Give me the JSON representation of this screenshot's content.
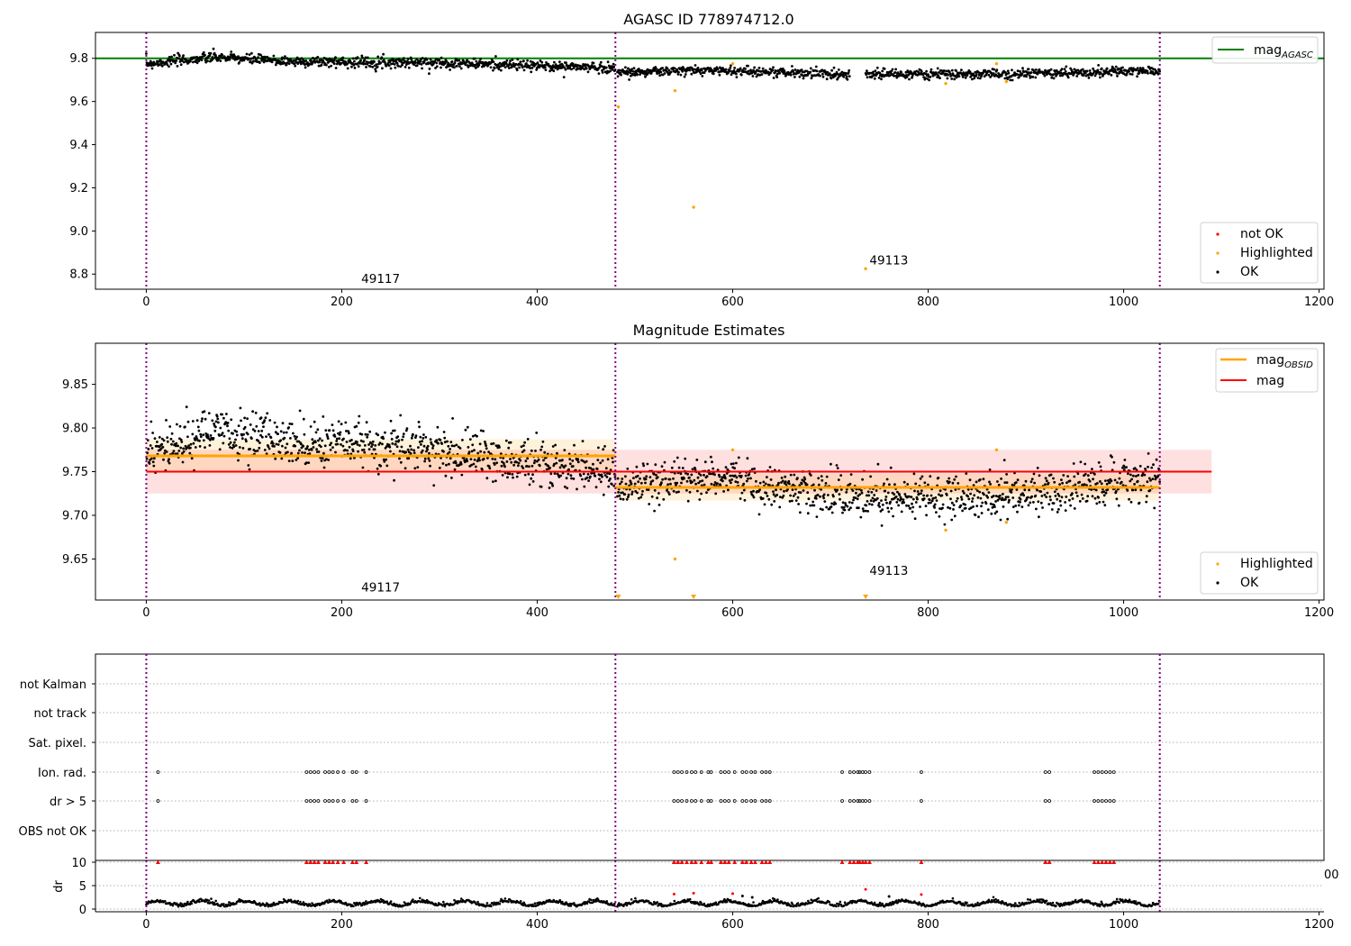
{
  "chart_data": [
    {
      "type": "scatter",
      "title": "AGASC ID 778974712.0",
      "xlim": [
        -52,
        1205
      ],
      "ylim": [
        8.73,
        9.92
      ],
      "xticks": [
        0,
        200,
        400,
        600,
        800,
        1000,
        1200
      ],
      "yticks": [
        8.8,
        9.0,
        9.2,
        9.4,
        9.6,
        9.8
      ],
      "ytick_labels": [
        "8.8",
        "9.0",
        "9.2",
        "9.4",
        "9.6",
        "9.8"
      ],
      "obsid_boundaries": [
        0,
        480,
        1037
      ],
      "mag_agasc": 9.8,
      "annotations": [
        {
          "text": "49117",
          "x": 220,
          "y": 8.76
        },
        {
          "text": "49113",
          "x": 740,
          "y": 8.845
        }
      ],
      "legend_upper": {
        "items": [
          {
            "label": "mag",
            "sub": "AGASC",
            "color": "#008000"
          }
        ],
        "position": "upper right"
      },
      "legend_lower": {
        "items": [
          {
            "label": "not OK",
            "color": "#ff0000"
          },
          {
            "label": "Highlighted",
            "color": "#ffa500"
          },
          {
            "label": "OK",
            "color": "#000000"
          }
        ],
        "position": "lower right"
      },
      "series": [
        {
          "name": "OK",
          "color": "#000000",
          "segments": [
            {
              "x_start": 0,
              "x_end": 480,
              "mean": 9.772,
              "trend": [
                [
                  0,
                  9.775
                ],
                [
                  70,
                  9.805
                ],
                [
                  150,
                  9.785
                ],
                [
                  300,
                  9.78
                ],
                [
                  400,
                  9.765
                ],
                [
                  480,
                  9.755
                ]
              ],
              "spread": 0.012
            },
            {
              "x_start": 482,
              "x_end": 1037,
              "mean": 9.735,
              "trend": [
                [
                  482,
                  9.735
                ],
                [
                  580,
                  9.745
                ],
                [
                  700,
                  9.728
                ],
                [
                  850,
                  9.725
                ],
                [
                  1037,
                  9.742
                ]
              ],
              "spread": 0.011
            }
          ],
          "gap": [
            720,
            736
          ]
        },
        {
          "name": "Highlighted",
          "color": "#ffa500",
          "points": [
            {
              "x": 483,
              "y": 9.575
            },
            {
              "x": 541,
              "y": 9.65
            },
            {
              "x": 560,
              "y": 9.11
            },
            {
              "x": 600,
              "y": 9.775
            },
            {
              "x": 736,
              "y": 8.825
            },
            {
              "x": 818,
              "y": 9.683
            },
            {
              "x": 870,
              "y": 9.775
            },
            {
              "x": 880,
              "y": 9.692
            }
          ]
        }
      ]
    },
    {
      "type": "scatter",
      "title": "Magnitude Estimates",
      "xlim": [
        -52,
        1205
      ],
      "ylim": [
        9.603,
        9.897
      ],
      "xticks": [
        0,
        200,
        400,
        600,
        800,
        1000,
        1200
      ],
      "yticks": [
        9.65,
        9.7,
        9.75,
        9.8,
        9.85
      ],
      "ytick_labels": [
        "9.65",
        "9.70",
        "9.75",
        "9.80",
        "9.85"
      ],
      "obsid_boundaries": [
        0,
        480,
        1037
      ],
      "mag": {
        "value": 9.75,
        "band": [
          9.725,
          9.775
        ],
        "x_range": [
          0,
          1090
        ],
        "color": "#ff0000"
      },
      "mag_obsid": [
        {
          "x_range": [
            0,
            480
          ],
          "value": 9.768,
          "band": [
            9.75,
            9.787
          ]
        },
        {
          "x_range": [
            480,
            1037
          ],
          "value": 9.732,
          "band": [
            9.717,
            9.747
          ]
        }
      ],
      "annotations": [
        {
          "text": "49117",
          "x": 220,
          "y": 9.613
        },
        {
          "text": "49113",
          "x": 740,
          "y": 9.632
        }
      ],
      "legend_upper": {
        "items": [
          {
            "label": "mag",
            "sub": "OBSID",
            "color": "#ffa500"
          },
          {
            "label": "mag",
            "sub": "",
            "color": "#ff0000"
          }
        ],
        "position": "upper right"
      },
      "legend_lower": {
        "items": [
          {
            "label": "Highlighted",
            "color": "#ffa500"
          },
          {
            "label": "OK",
            "color": "#000000"
          }
        ],
        "position": "lower right"
      },
      "clipped_markers_x": [
        483,
        560,
        736
      ],
      "series": [
        {
          "name": "OK",
          "color": "#000000",
          "segments": [
            {
              "x_start": 0,
              "x_end": 480,
              "trend": [
                [
                  0,
                  9.77
                ],
                [
                  70,
                  9.795
                ],
                [
                  150,
                  9.785
                ],
                [
                  300,
                  9.775
                ],
                [
                  400,
                  9.76
                ],
                [
                  480,
                  9.75
                ]
              ],
              "spread": 0.013
            },
            {
              "x_start": 482,
              "x_end": 1037,
              "trend": [
                [
                  482,
                  9.73
                ],
                [
                  580,
                  9.745
                ],
                [
                  700,
                  9.725
                ],
                [
                  850,
                  9.72
                ],
                [
                  1037,
                  9.742
                ]
              ],
              "spread": 0.012
            }
          ]
        },
        {
          "name": "Highlighted",
          "color": "#ffa500",
          "points": [
            {
              "x": 541,
              "y": 9.65
            },
            {
              "x": 600,
              "y": 9.775
            },
            {
              "x": 818,
              "y": 9.683
            },
            {
              "x": 870,
              "y": 9.775
            },
            {
              "x": 880,
              "y": 9.692
            }
          ]
        }
      ]
    },
    {
      "type": "scatter",
      "title": "",
      "xlim": [
        -52,
        1205
      ],
      "categories": [
        "not Kalman",
        "not track",
        "Sat. pixel.",
        "Ion. rad.",
        "dr > 5",
        "OBS not OK"
      ],
      "flags": {
        "Ion. rad.": [
          12,
          164,
          168,
          172,
          176,
          183,
          187,
          191,
          196,
          202,
          211,
          215,
          225,
          540,
          544,
          548,
          553,
          558,
          562,
          568,
          575,
          578,
          588,
          592,
          596,
          602,
          610,
          614,
          619,
          623,
          630,
          634,
          638,
          712,
          720,
          724,
          728,
          730,
          733,
          736,
          740,
          793,
          920,
          924,
          970,
          974,
          978,
          982,
          986,
          990
        ],
        "dr > 5": [
          12,
          164,
          168,
          172,
          176,
          183,
          187,
          191,
          196,
          202,
          211,
          215,
          225,
          540,
          544,
          548,
          553,
          558,
          562,
          568,
          575,
          578,
          588,
          592,
          596,
          602,
          610,
          614,
          619,
          623,
          630,
          634,
          638,
          712,
          720,
          724,
          728,
          730,
          733,
          736,
          740,
          793,
          920,
          924,
          970,
          974,
          978,
          982,
          986,
          990
        ]
      },
      "obsid_boundaries": [
        0,
        480,
        1037
      ]
    },
    {
      "type": "scatter",
      "title": "",
      "xlim": [
        -52,
        1205
      ],
      "xticks": [
        0,
        200,
        400,
        600,
        800,
        1000,
        1200
      ],
      "ylabel": "dr",
      "yticks": [
        0,
        5,
        10
      ],
      "ytick_labels": [
        "0",
        "5",
        "10"
      ],
      "ylim": [
        -0.5,
        10.5
      ],
      "clipped_label": "00",
      "clipped_x": [
        12,
        164,
        168,
        172,
        176,
        183,
        187,
        191,
        196,
        202,
        211,
        215,
        225,
        540,
        544,
        548,
        553,
        558,
        562,
        568,
        575,
        578,
        588,
        592,
        596,
        602,
        610,
        614,
        619,
        623,
        630,
        634,
        638,
        712,
        720,
        724,
        728,
        730,
        733,
        736,
        740,
        793,
        920,
        924,
        970,
        974,
        978,
        982,
        986,
        990
      ],
      "extra_points": [
        {
          "x": 540,
          "y": 3.2,
          "color": "#ff0000"
        },
        {
          "x": 560,
          "y": 3.4,
          "color": "#ff0000"
        },
        {
          "x": 600,
          "y": 3.3,
          "color": "#ff0000"
        },
        {
          "x": 736,
          "y": 4.2,
          "color": "#ff0000"
        },
        {
          "x": 793,
          "y": 3.1,
          "color": "#ff0000"
        },
        {
          "x": 610,
          "y": 2.8,
          "color": "#000000"
        },
        {
          "x": 620,
          "y": 2.5,
          "color": "#000000"
        },
        {
          "x": 760,
          "y": 2.7,
          "color": "#000000"
        }
      ],
      "baseline": {
        "mean": 1.0,
        "amplitude": 0.6,
        "period": 45
      },
      "obsid_boundaries": [
        0,
        480,
        1037
      ]
    }
  ]
}
